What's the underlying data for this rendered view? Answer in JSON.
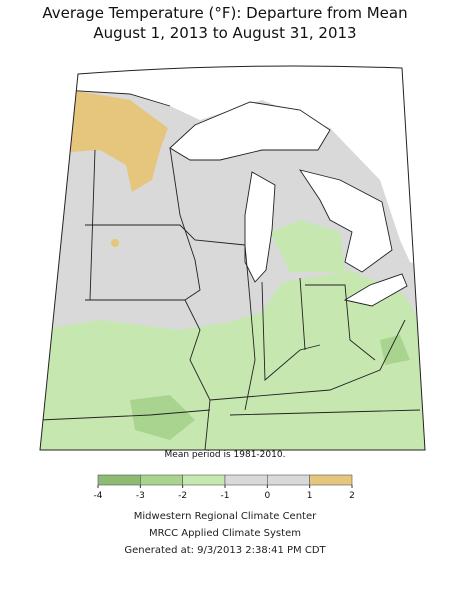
{
  "title": [
    "Average Temperature (°F): Departure from Mean",
    "August 1, 2013 to August 31, 2013"
  ],
  "note": "Mean period is 1981-2010.",
  "legend": {
    "ticks": [
      -4,
      -3,
      -2,
      -1,
      0,
      1,
      2
    ],
    "colors": [
      "#8dbb72",
      "#a9d48f",
      "#c6e8b0",
      "#d9d9d9",
      "#d9d9d9",
      "#e6c57c"
    ]
  },
  "footer": [
    "Midwestern Regional Climate Center",
    "MRCC Applied Climate System",
    "Generated at: 9/3/2013 2:38:41 PM CDT"
  ]
}
